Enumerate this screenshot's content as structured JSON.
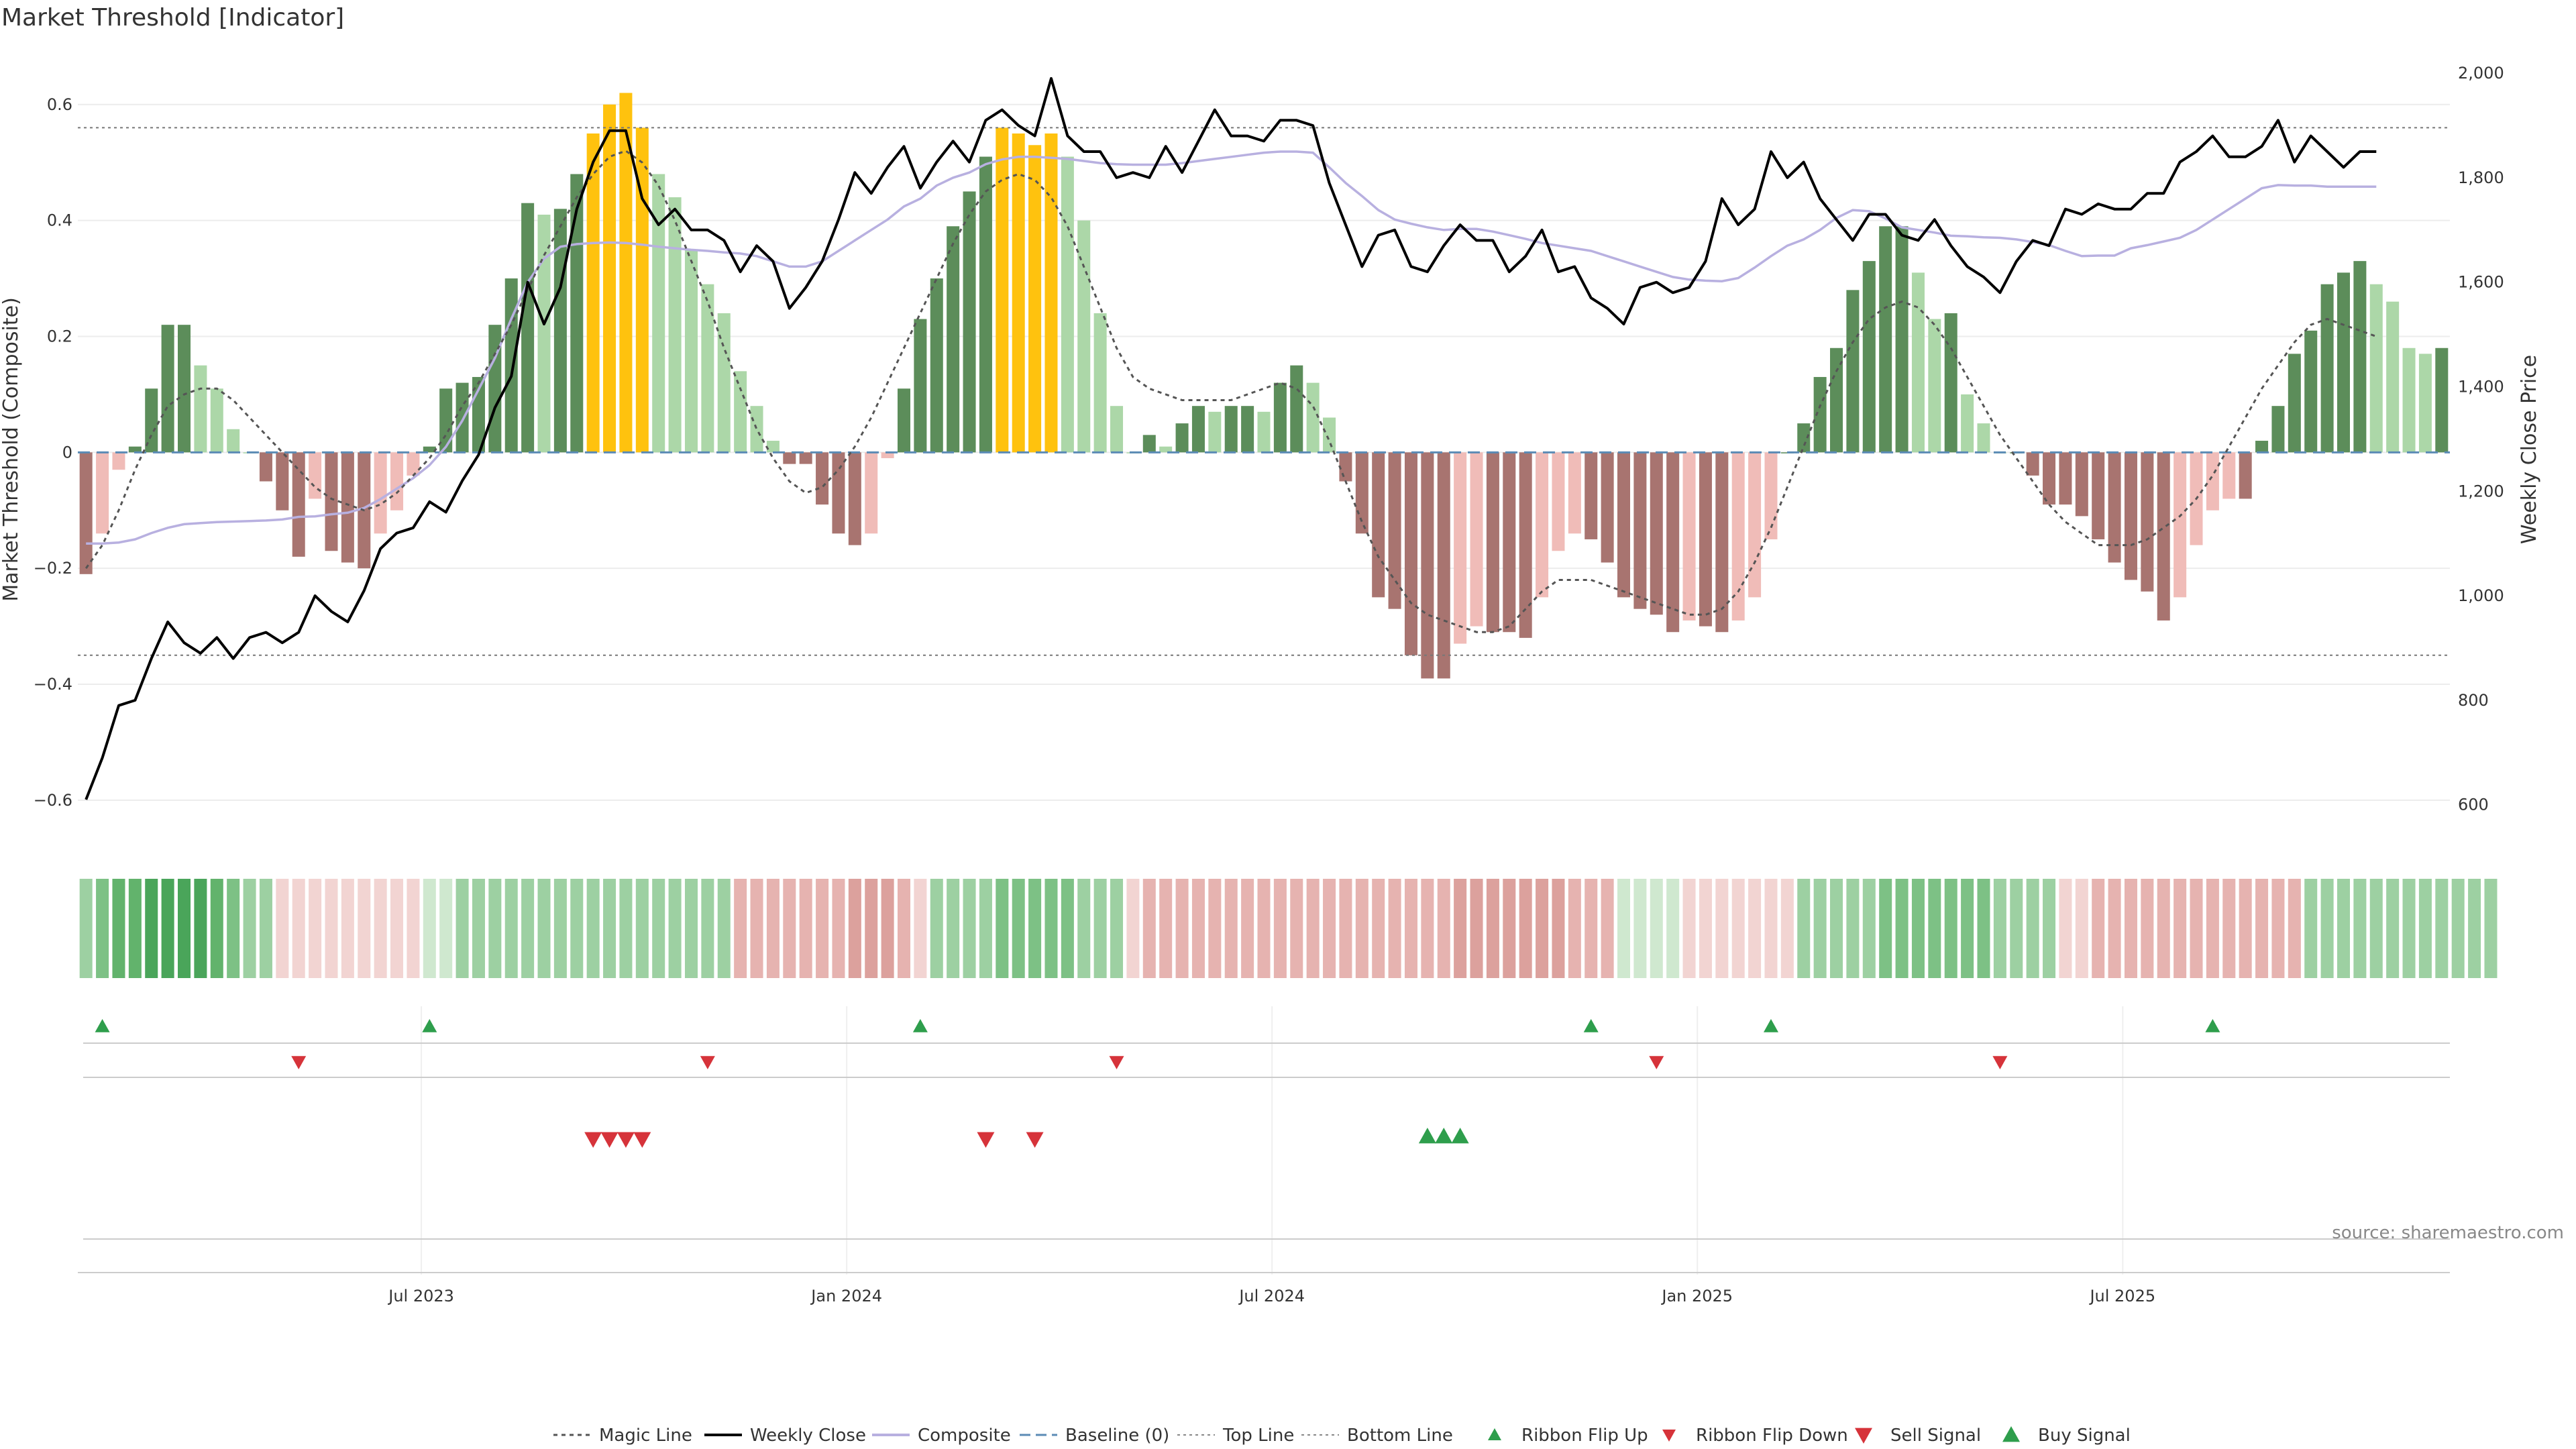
{
  "chart_data": {
    "type": "bar",
    "title": "Market Threshold [Indicator]",
    "ylabel": "Market Threshold (Composite)",
    "y2label": "Weekly Close Price",
    "ylim": [
      -0.68,
      0.69
    ],
    "y2lim": [
      520,
      2040
    ],
    "yticks": [
      -0.6,
      -0.4,
      -0.2,
      0,
      0.2,
      0.4,
      0.6
    ],
    "ytick_labels": [
      "−0.6",
      "−0.4",
      "−0.2",
      "0",
      "0.2",
      "0.4",
      "0.6"
    ],
    "y2ticks": [
      600,
      800,
      1000,
      1200,
      1400,
      1600,
      1800,
      2000
    ],
    "y2tick_labels": [
      "600",
      "800",
      "1,000",
      "1,200",
      "1,400",
      "1,600",
      "1,800",
      "2,000"
    ],
    "xticks": [
      {
        "index": 21,
        "label": "Jul 2023"
      },
      {
        "index": 47,
        "label": "Jan 2024"
      },
      {
        "index": 73,
        "label": "Jul 2024"
      },
      {
        "index": 99,
        "label": "Jan 2025"
      },
      {
        "index": 125,
        "label": "Jul 2025"
      }
    ],
    "top_line": 0.56,
    "bottom_line": -0.35,
    "baseline": 0,
    "grid": true,
    "legend_position": "bottom-center",
    "composite": [
      -0.21,
      -0.14,
      -0.03,
      0.01,
      0.11,
      0.22,
      0.22,
      0.15,
      0.11,
      0.04,
      0.0,
      -0.05,
      -0.1,
      -0.18,
      -0.08,
      -0.17,
      -0.19,
      -0.2,
      -0.14,
      -0.1,
      -0.04,
      0.01,
      0.11,
      0.12,
      0.13,
      0.22,
      0.3,
      0.43,
      0.41,
      0.42,
      0.48,
      0.55,
      0.6,
      0.62,
      0.56,
      0.48,
      0.44,
      0.35,
      0.29,
      0.24,
      0.14,
      0.08,
      0.02,
      -0.02,
      -0.02,
      -0.09,
      -0.14,
      -0.16,
      -0.14,
      -0.01,
      0.11,
      0.23,
      0.3,
      0.39,
      0.45,
      0.51,
      0.56,
      0.55,
      0.53,
      0.55,
      0.51,
      0.4,
      0.24,
      0.08,
      0.0,
      0.03,
      0.01,
      0.05,
      0.08,
      0.07,
      0.08,
      0.08,
      0.07,
      0.12,
      0.15,
      0.12,
      0.06,
      -0.05,
      -0.14,
      -0.25,
      -0.27,
      -0.35,
      -0.39,
      -0.39,
      -0.33,
      -0.3,
      -0.31,
      -0.31,
      -0.32,
      -0.25,
      -0.17,
      -0.14,
      -0.15,
      -0.19,
      -0.25,
      -0.27,
      -0.28,
      -0.31,
      -0.29,
      -0.3,
      -0.31,
      -0.29,
      -0.25,
      -0.15,
      0.0,
      0.05,
      0.13,
      0.18,
      0.28,
      0.33,
      0.39,
      0.39,
      0.31,
      0.23,
      0.24,
      0.1,
      0.05,
      0.0,
      0.0,
      -0.04,
      -0.09,
      -0.09,
      -0.11,
      -0.15,
      -0.19,
      -0.22,
      -0.24,
      -0.29,
      -0.25,
      -0.16,
      -0.1,
      -0.08,
      -0.08,
      0.02,
      0.08,
      0.17,
      0.21,
      0.29,
      0.31,
      0.33,
      0.29,
      0.26,
      0.18,
      0.17,
      0.18
    ],
    "weekly_close": [
      610,
      690,
      790,
      800,
      880,
      950,
      910,
      890,
      920,
      880,
      920,
      930,
      910,
      930,
      1000,
      970,
      950,
      1010,
      1090,
      1120,
      1130,
      1180,
      1160,
      1220,
      1270,
      1360,
      1420,
      1600,
      1520,
      1590,
      1740,
      1830,
      1890,
      1890,
      1760,
      1710,
      1740,
      1700,
      1700,
      1680,
      1620,
      1670,
      1640,
      1550,
      1590,
      1640,
      1720,
      1810,
      1770,
      1820,
      1860,
      1780,
      1830,
      1870,
      1830,
      1910,
      1930,
      1900,
      1880,
      1990,
      1880,
      1850,
      1850,
      1800,
      1810,
      1800,
      1860,
      1810,
      1870,
      1930,
      1880,
      1880,
      1870,
      1910,
      1910,
      1900,
      1790,
      1710,
      1630,
      1690,
      1700,
      1630,
      1620,
      1670,
      1710,
      1680,
      1680,
      1620,
      1650,
      1700,
      1620,
      1630,
      1570,
      1550,
      1520,
      1590,
      1600,
      1580,
      1590,
      1640,
      1760,
      1710,
      1740,
      1850,
      1800,
      1830,
      1760,
      1720,
      1680,
      1730,
      1730,
      1690,
      1680,
      1720,
      1670,
      1630,
      1610,
      1580,
      1640,
      1680,
      1670,
      1740,
      1730,
      1750,
      1740,
      1740,
      1770,
      1770,
      1830,
      1850,
      1880,
      1840,
      1840,
      1860,
      1910,
      1830,
      1880,
      1850,
      1820,
      1850,
      1850
    ],
    "composite_smooth": [
      1100,
      1100,
      1102,
      1108,
      1120,
      1130,
      1137,
      1139,
      1141,
      1142,
      1143,
      1144,
      1146,
      1151,
      1152,
      1156,
      1159,
      1168,
      1185,
      1205,
      1225,
      1250,
      1285,
      1335,
      1395,
      1455,
      1530,
      1600,
      1645,
      1668,
      1673,
      1675,
      1676,
      1675,
      1672,
      1668,
      1665,
      1662,
      1660,
      1657,
      1655,
      1650,
      1640,
      1630,
      1630,
      1640,
      1660,
      1680,
      1700,
      1720,
      1745,
      1760,
      1785,
      1800,
      1810,
      1826,
      1835,
      1840,
      1840,
      1838,
      1836,
      1832,
      1828,
      1826,
      1825,
      1825,
      1825,
      1828,
      1832,
      1836,
      1840,
      1844,
      1848,
      1850,
      1850,
      1848,
      1820,
      1790,
      1765,
      1738,
      1720,
      1712,
      1705,
      1700,
      1702,
      1702,
      1697,
      1690,
      1683,
      1675,
      1670,
      1665,
      1660,
      1650,
      1640,
      1630,
      1620,
      1610,
      1605,
      1603,
      1602,
      1608,
      1628,
      1650,
      1670,
      1682,
      1700,
      1723,
      1738,
      1736,
      1722,
      1705,
      1700,
      1695,
      1689,
      1688,
      1686,
      1685,
      1682,
      1677,
      1671,
      1660,
      1650,
      1651,
      1651,
      1665,
      1671,
      1678,
      1685,
      1700,
      1720,
      1740,
      1760,
      1780,
      1786,
      1785,
      1785,
      1783,
      1783,
      1783,
      1783
    ],
    "magic_line": [
      -0.2,
      -0.16,
      -0.1,
      -0.03,
      0.03,
      0.08,
      0.1,
      0.11,
      0.11,
      0.09,
      0.06,
      0.03,
      0.0,
      -0.03,
      -0.06,
      -0.08,
      -0.09,
      -0.1,
      -0.09,
      -0.07,
      -0.04,
      -0.01,
      0.03,
      0.08,
      0.12,
      0.17,
      0.22,
      0.28,
      0.34,
      0.39,
      0.44,
      0.48,
      0.51,
      0.52,
      0.5,
      0.46,
      0.4,
      0.33,
      0.26,
      0.18,
      0.11,
      0.04,
      -0.01,
      -0.05,
      -0.07,
      -0.06,
      -0.03,
      0.01,
      0.06,
      0.12,
      0.18,
      0.24,
      0.3,
      0.36,
      0.41,
      0.45,
      0.47,
      0.48,
      0.47,
      0.44,
      0.39,
      0.32,
      0.25,
      0.18,
      0.13,
      0.11,
      0.1,
      0.09,
      0.09,
      0.09,
      0.09,
      0.1,
      0.11,
      0.12,
      0.11,
      0.08,
      0.02,
      -0.05,
      -0.12,
      -0.18,
      -0.22,
      -0.26,
      -0.28,
      -0.29,
      -0.3,
      -0.31,
      -0.31,
      -0.3,
      -0.27,
      -0.24,
      -0.22,
      -0.22,
      -0.22,
      -0.23,
      -0.24,
      -0.25,
      -0.26,
      -0.27,
      -0.28,
      -0.28,
      -0.27,
      -0.24,
      -0.19,
      -0.13,
      -0.06,
      0.01,
      0.08,
      0.14,
      0.19,
      0.23,
      0.25,
      0.26,
      0.25,
      0.22,
      0.18,
      0.13,
      0.08,
      0.03,
      -0.01,
      -0.05,
      -0.09,
      -0.12,
      -0.14,
      -0.16,
      -0.16,
      -0.16,
      -0.15,
      -0.13,
      -0.11,
      -0.08,
      -0.04,
      0.01,
      0.06,
      0.11,
      0.15,
      0.19,
      0.22,
      0.23,
      0.22,
      0.21,
      0.2
    ],
    "ribbon": [
      2,
      3,
      4,
      4,
      5,
      5,
      5,
      5,
      4,
      3,
      2,
      2,
      -1,
      -1,
      -1,
      -1,
      -1,
      -1,
      -1,
      -1,
      -1,
      1,
      1,
      2,
      2,
      2,
      2,
      2,
      2,
      2,
      2,
      2,
      2,
      2,
      2,
      2,
      2,
      2,
      2,
      2,
      -2,
      -2,
      -2,
      -2,
      -2,
      -2,
      -2,
      -3,
      -3,
      -3,
      -2,
      -1,
      2,
      2,
      2,
      2,
      3,
      3,
      3,
      3,
      3,
      2,
      2,
      2,
      -1,
      -2,
      -2,
      -2,
      -2,
      -2,
      -2,
      -2,
      -2,
      -2,
      -2,
      -2,
      -2,
      -2,
      -2,
      -2,
      -2,
      -2,
      -2,
      -2,
      -3,
      -3,
      -3,
      -3,
      -3,
      -3,
      -3,
      -2,
      -2,
      -2,
      1,
      1,
      1,
      1,
      -1,
      -1,
      -1,
      -1,
      -1,
      -1,
      -1,
      2,
      2,
      2,
      2,
      2,
      3,
      3,
      3,
      3,
      3,
      3,
      3,
      2,
      2,
      2,
      2,
      -1,
      -1,
      -2,
      -2,
      -2,
      -2,
      -2,
      -2,
      -2,
      -2,
      -2,
      -2,
      -2,
      -2,
      -2,
      2,
      2,
      2,
      2,
      2,
      2,
      2,
      2,
      2,
      2,
      2,
      2
    ],
    "signals": {
      "ribbon_flip_up": [
        1,
        21,
        51,
        92,
        103,
        130
      ],
      "ribbon_flip_down": [
        13,
        38,
        63,
        96,
        117
      ],
      "sell_signal": [
        31,
        32,
        33,
        34,
        55,
        58
      ],
      "buy_signal": [
        82,
        83,
        84
      ]
    },
    "series": [
      {
        "name": "Magic Line"
      },
      {
        "name": "Weekly Close"
      },
      {
        "name": "Composite"
      },
      {
        "name": "Baseline (0)"
      },
      {
        "name": "Top Line"
      },
      {
        "name": "Bottom Line"
      },
      {
        "name": "Ribbon Flip Up"
      },
      {
        "name": "Ribbon Flip Down"
      },
      {
        "name": "Sell Signal"
      },
      {
        "name": "Buy Signal"
      }
    ]
  },
  "footer": {
    "source": "source: sharemaestro.com"
  },
  "colors": {
    "strong_up": "#5c8d5a",
    "weak_up": "#acd7a8",
    "strong_down": "#a87470",
    "weak_down": "#f0bcb8",
    "extreme": "#ffc20e",
    "close_line": "#000000",
    "composite_line": "#b8b0e0",
    "magic_line": "#555555",
    "baseline": "#5b8bb5",
    "signal_up": "#2e9e4c",
    "signal_down": "#d6333a"
  }
}
